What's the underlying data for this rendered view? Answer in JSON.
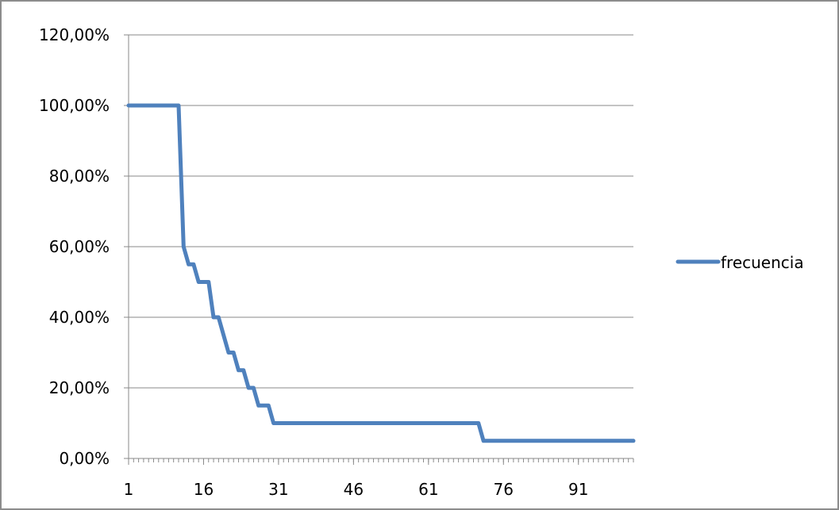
{
  "chart_data": {
    "type": "line",
    "title": "",
    "xlabel": "",
    "ylabel": "",
    "x_range": [
      1,
      102
    ],
    "ylim": [
      0,
      1.2
    ],
    "y_ticks": [
      0,
      0.2,
      0.4,
      0.6,
      0.8,
      1.0,
      1.2
    ],
    "y_tick_labels": [
      "0,00%",
      "20,00%",
      "40,00%",
      "60,00%",
      "80,00%",
      "100,00%",
      "120,00%"
    ],
    "x_ticks": [
      1,
      16,
      31,
      46,
      61,
      76,
      91
    ],
    "x_tick_labels": [
      "1",
      "16",
      "31",
      "46",
      "61",
      "76",
      "91"
    ],
    "grid": "horizontal",
    "legend_position": "right",
    "series": [
      {
        "name": "frecuencia",
        "color": "#4f81bd",
        "points": [
          [
            1,
            1.0
          ],
          [
            11,
            1.0
          ],
          [
            12,
            0.6
          ],
          [
            13,
            0.55
          ],
          [
            14,
            0.55
          ],
          [
            15,
            0.5
          ],
          [
            16,
            0.5
          ],
          [
            17,
            0.5
          ],
          [
            18,
            0.4
          ],
          [
            19,
            0.4
          ],
          [
            20,
            0.35
          ],
          [
            21,
            0.3
          ],
          [
            22,
            0.3
          ],
          [
            23,
            0.25
          ],
          [
            24,
            0.25
          ],
          [
            25,
            0.2
          ],
          [
            26,
            0.2
          ],
          [
            27,
            0.15
          ],
          [
            28,
            0.15
          ],
          [
            29,
            0.15
          ],
          [
            30,
            0.1
          ],
          [
            71,
            0.1
          ],
          [
            72,
            0.05
          ],
          [
            102,
            0.05
          ]
        ]
      }
    ]
  }
}
